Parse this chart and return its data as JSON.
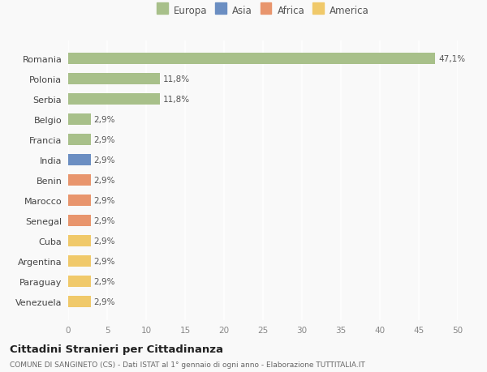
{
  "categories": [
    "Venezuela",
    "Paraguay",
    "Argentina",
    "Cuba",
    "Senegal",
    "Marocco",
    "Benin",
    "India",
    "Francia",
    "Belgio",
    "Serbia",
    "Polonia",
    "Romania"
  ],
  "values": [
    2.9,
    2.9,
    2.9,
    2.9,
    2.9,
    2.9,
    2.9,
    2.9,
    2.9,
    2.9,
    11.8,
    11.8,
    47.1
  ],
  "colors": [
    "#f0c96a",
    "#f0c96a",
    "#f0c96a",
    "#f0c96a",
    "#e8956d",
    "#e8956d",
    "#e8956d",
    "#6b8ec2",
    "#a8c08a",
    "#a8c08a",
    "#a8c08a",
    "#a8c08a",
    "#a8c08a"
  ],
  "labels": [
    "2,9%",
    "2,9%",
    "2,9%",
    "2,9%",
    "2,9%",
    "2,9%",
    "2,9%",
    "2,9%",
    "2,9%",
    "2,9%",
    "11,8%",
    "11,8%",
    "47,1%"
  ],
  "xlim": [
    0,
    50
  ],
  "xticks": [
    0,
    5,
    10,
    15,
    20,
    25,
    30,
    35,
    40,
    45,
    50
  ],
  "title": "Cittadini Stranieri per Cittadinanza",
  "subtitle": "COMUNE DI SANGINETO (CS) - Dati ISTAT al 1° gennaio di ogni anno - Elaborazione TUTTITALIA.IT",
  "legend_labels": [
    "Europa",
    "Asia",
    "Africa",
    "America"
  ],
  "legend_colors": [
    "#a8c08a",
    "#6b8ec2",
    "#e8956d",
    "#f0c96a"
  ],
  "background_color": "#f9f9f9",
  "grid_color": "#ffffff",
  "bar_height": 0.55
}
